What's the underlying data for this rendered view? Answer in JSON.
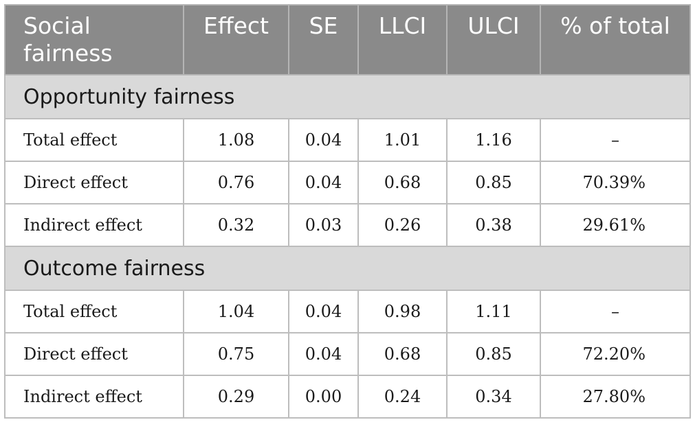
{
  "header": {
    "col_label": "Social fairness",
    "effect": "Effect",
    "se": "SE",
    "llci": "LLCI",
    "ulci": "ULCI",
    "pct": "% of total"
  },
  "sections": [
    {
      "title": "Opportunity fairness",
      "rows": [
        {
          "label": "Total effect",
          "effect": "1.08",
          "se": "0.04",
          "llci": "1.01",
          "ulci": "1.16",
          "pct": "–"
        },
        {
          "label": "Direct effect",
          "effect": "0.76",
          "se": "0.04",
          "llci": "0.68",
          "ulci": "0.85",
          "pct": "70.39%"
        },
        {
          "label": "Indirect effect",
          "effect": "0.32",
          "se": "0.03",
          "llci": "0.26",
          "ulci": "0.38",
          "pct": "29.61%"
        }
      ]
    },
    {
      "title": "Outcome fairness",
      "rows": [
        {
          "label": "Total effect",
          "effect": "1.04",
          "se": "0.04",
          "llci": "0.98",
          "ulci": "1.11",
          "pct": "–"
        },
        {
          "label": "Direct effect",
          "effect": "0.75",
          "se": "0.04",
          "llci": "0.68",
          "ulci": "0.85",
          "pct": "72.20%"
        },
        {
          "label": "Indirect effect",
          "effect": "0.29",
          "se": "0.00",
          "llci": "0.24",
          "ulci": "0.34",
          "pct": "27.80%"
        }
      ]
    }
  ]
}
